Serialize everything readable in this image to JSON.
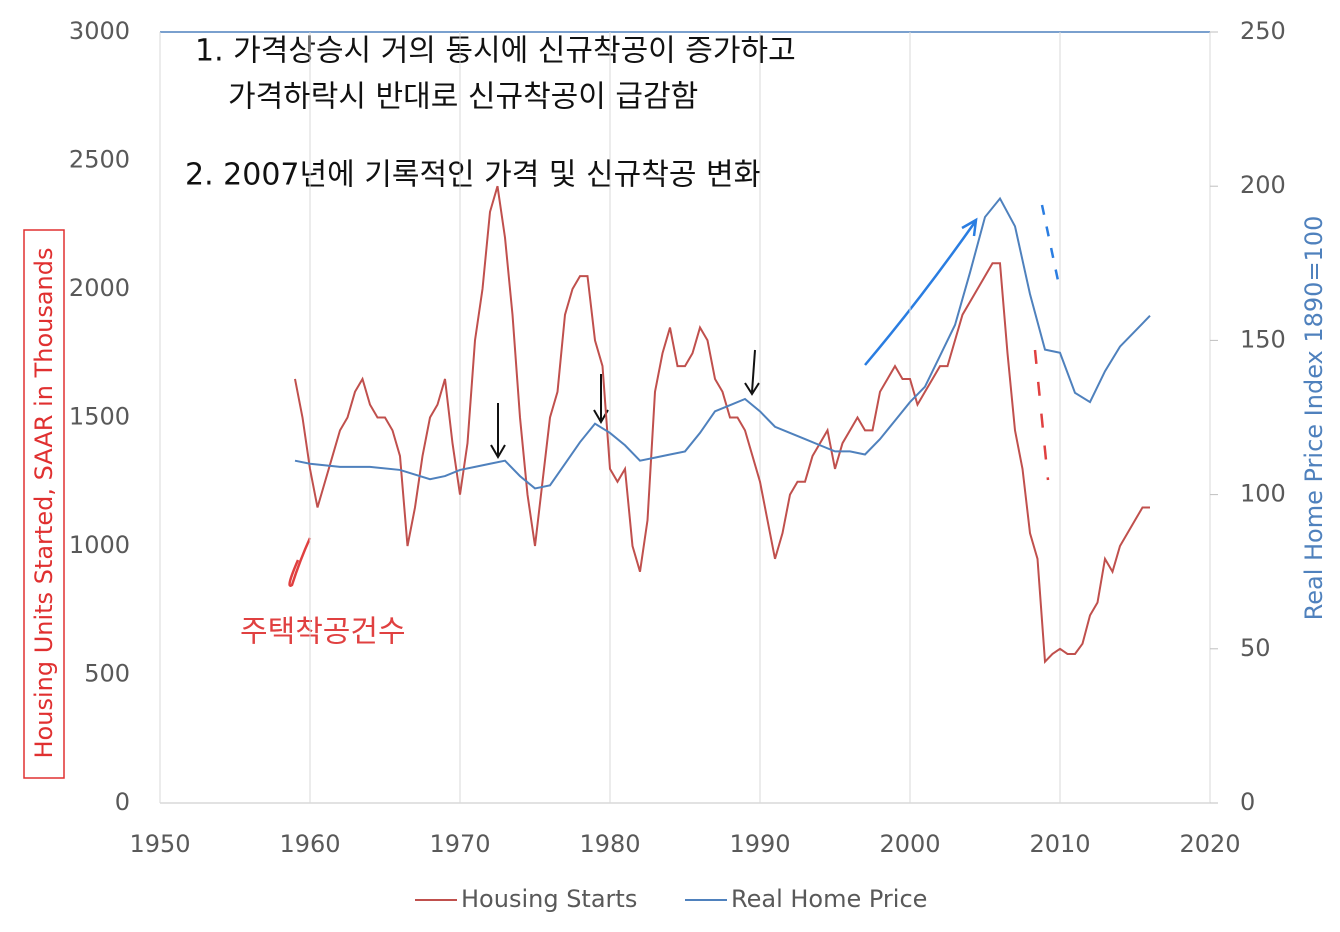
{
  "chart_data": {
    "type": "line",
    "xlim": [
      1950,
      2020
    ],
    "xticks": [
      1950,
      1960,
      1970,
      1980,
      1990,
      2000,
      2010,
      2020
    ],
    "ylim": [
      0,
      3000
    ],
    "yticks": [
      0,
      500,
      1000,
      1500,
      2000,
      2500,
      3000
    ],
    "y2lim": [
      0,
      250
    ],
    "y2ticks": [
      0,
      50,
      100,
      150,
      200,
      250
    ],
    "ylabel": "Housing Units Started, SAAR in Thousands",
    "y2label": "Real Home Price Index 1890=100",
    "grid": true,
    "legend": "bottom",
    "annotations": [
      "1. 가격상승시 거의 동시에 신규착공이 증가하고",
      "가격하락시 반대로 신규착공이 급감함",
      "2. 2007년에 기록적인 가격 및 신규착공 변화",
      "주택착공건수"
    ],
    "series": [
      {
        "name": "Housing Starts",
        "color": "#c0504d",
        "x": [
          1959,
          1959.5,
          1960,
          1960.5,
          1961,
          1961.5,
          1962,
          1962.5,
          1963,
          1963.5,
          1964,
          1964.5,
          1965,
          1965.5,
          1966,
          1966.5,
          1967,
          1967.5,
          1968,
          1968.5,
          1969,
          1969.5,
          1970,
          1970.5,
          1971,
          1971.5,
          1972,
          1972.5,
          1973,
          1973.5,
          1974,
          1974.5,
          1975,
          1975.5,
          1976,
          1976.5,
          1977,
          1977.5,
          1978,
          1978.5,
          1979,
          1979.5,
          1980,
          1980.5,
          1981,
          1981.5,
          1982,
          1982.5,
          1983,
          1983.5,
          1984,
          1984.5,
          1985,
          1985.5,
          1986,
          1986.5,
          1987,
          1987.5,
          1988,
          1988.5,
          1989,
          1989.5,
          1990,
          1990.5,
          1991,
          1991.5,
          1992,
          1992.5,
          1993,
          1993.5,
          1994,
          1994.5,
          1995,
          1995.5,
          1996,
          1996.5,
          1997,
          1997.5,
          1998,
          1998.5,
          1999,
          1999.5,
          2000,
          2000.5,
          2001,
          2001.5,
          2002,
          2002.5,
          2003,
          2003.5,
          2004,
          2004.5,
          2005,
          2005.5,
          2006,
          2006.5,
          2007,
          2007.5,
          2008,
          2008.5,
          2009,
          2009.5,
          2010,
          2010.5,
          2011,
          2011.5,
          2012,
          2012.5,
          2013,
          2013.5,
          2014,
          2014.5,
          2015,
          2015.5,
          2016
        ],
        "values": [
          1650,
          1500,
          1300,
          1150,
          1250,
          1350,
          1450,
          1500,
          1600,
          1650,
          1550,
          1500,
          1500,
          1450,
          1350,
          1000,
          1150,
          1350,
          1500,
          1550,
          1650,
          1400,
          1200,
          1400,
          1800,
          2000,
          2300,
          2400,
          2200,
          1900,
          1500,
          1200,
          1000,
          1250,
          1500,
          1600,
          1900,
          2000,
          2050,
          2050,
          1800,
          1700,
          1300,
          1250,
          1300,
          1000,
          900,
          1100,
          1600,
          1750,
          1850,
          1700,
          1700,
          1750,
          1850,
          1800,
          1650,
          1600,
          1500,
          1500,
          1450,
          1350,
          1250,
          1100,
          950,
          1050,
          1200,
          1250,
          1250,
          1350,
          1400,
          1450,
          1300,
          1400,
          1450,
          1500,
          1450,
          1450,
          1600,
          1650,
          1700,
          1650,
          1650,
          1550,
          1600,
          1650,
          1700,
          1700,
          1800,
          1900,
          1950,
          2000,
          2050,
          2100,
          2100,
          1750,
          1450,
          1300,
          1050,
          950,
          550,
          580,
          600,
          580,
          580,
          620,
          730,
          780,
          950,
          900,
          1000,
          1050,
          1100,
          1150,
          1150
        ]
      },
      {
        "name": "Real Home Price",
        "color": "#4f81bd",
        "axis": "y2",
        "x": [
          1959,
          1960,
          1962,
          1964,
          1966,
          1968,
          1969,
          1970,
          1971,
          1972,
          1973,
          1974,
          1975,
          1976,
          1977,
          1978,
          1979,
          1980,
          1981,
          1982,
          1983,
          1984,
          1985,
          1986,
          1987,
          1988,
          1989,
          1990,
          1991,
          1992,
          1993,
          1994,
          1995,
          1996,
          1997,
          1998,
          1999,
          2000,
          2001,
          2002,
          2003,
          2004,
          2005,
          2006,
          2007,
          2008,
          2009,
          2010,
          2011,
          2012,
          2013,
          2014,
          2015,
          2016
        ],
        "values": [
          111,
          110,
          109,
          109,
          108,
          105,
          106,
          108,
          109,
          110,
          111,
          106,
          102,
          103,
          110,
          117,
          123,
          120,
          116,
          111,
          112,
          113,
          114,
          120,
          127,
          129,
          131,
          127,
          122,
          120,
          118,
          116,
          114,
          114,
          113,
          118,
          124,
          130,
          135,
          145,
          155,
          172,
          190,
          196,
          187,
          165,
          147,
          146,
          133,
          130,
          140,
          148,
          153,
          158
        ]
      }
    ]
  }
}
